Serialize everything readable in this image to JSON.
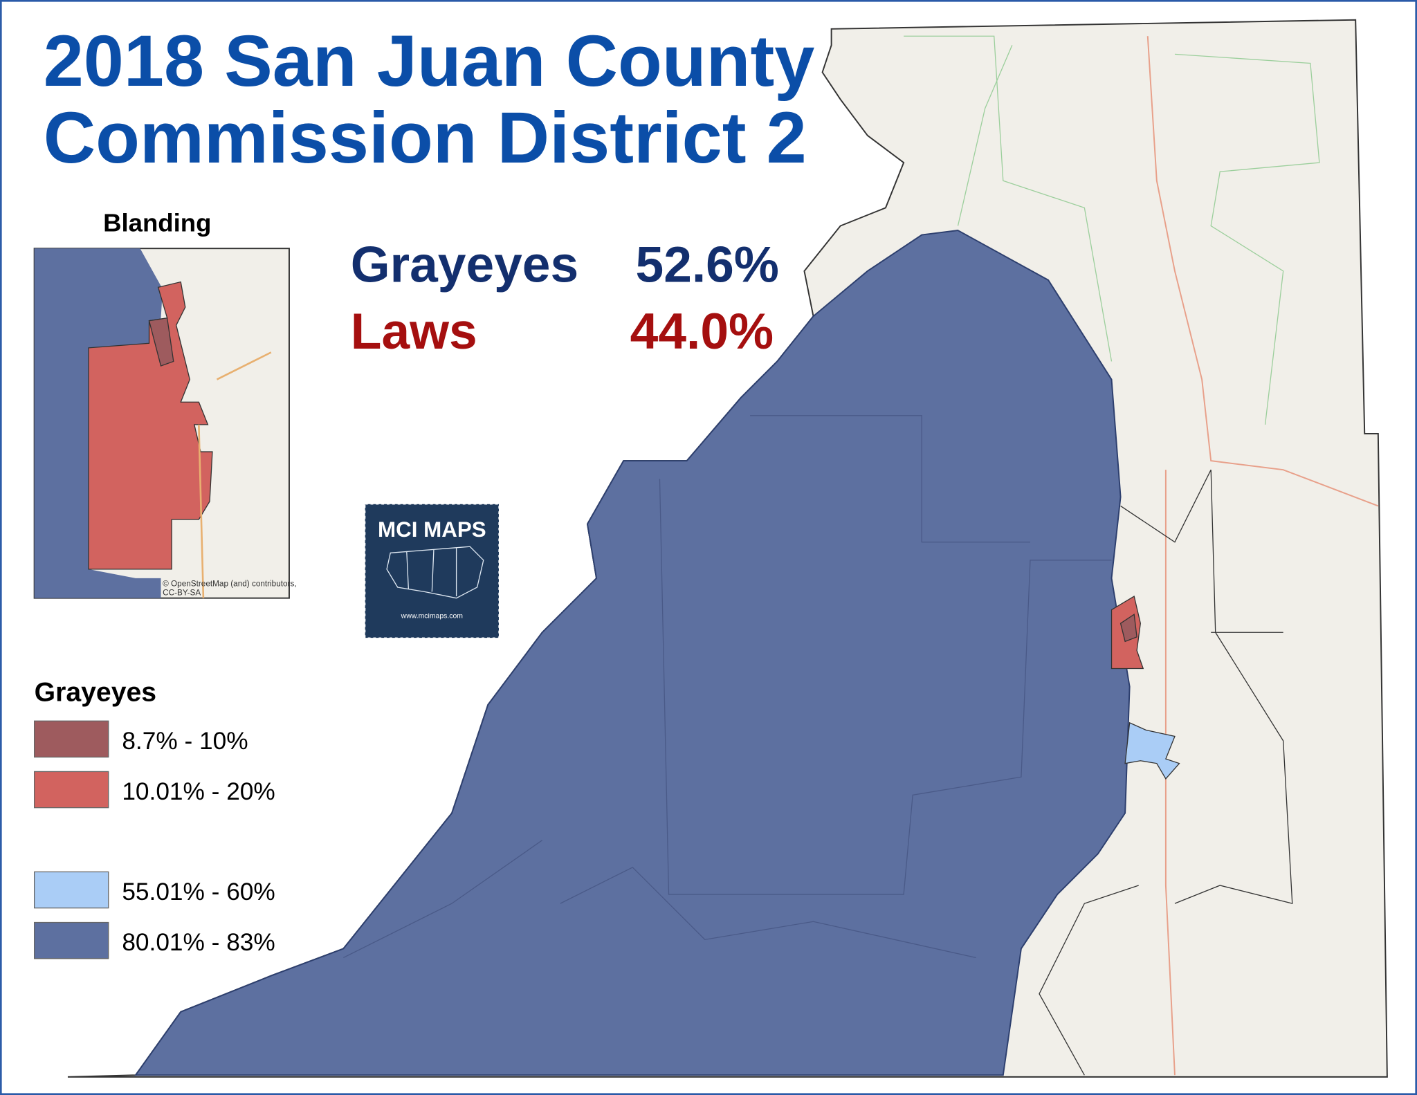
{
  "header": {
    "title_line1": "2018 San Juan County",
    "title_line2": "Commission District 2"
  },
  "results": [
    {
      "candidate": "Grayeyes",
      "share": "52.6%",
      "color": "#132f6e"
    },
    {
      "candidate": "Laws",
      "share": "44.0%",
      "color": "#a50f0f"
    }
  ],
  "inset": {
    "title": "Blanding",
    "attribution_line1": "© OpenStreetMap (and) contributors,",
    "attribution_line2": "CC-BY-SA"
  },
  "logo": {
    "name": "MCI MAPS",
    "url": "www.mcimaps.com"
  },
  "legend": {
    "title": "Grayeyes",
    "items": [
      {
        "label": "8.7% - 10%",
        "color": "#9e5b5e"
      },
      {
        "label": "10.01% - 20%",
        "color": "#d2635f"
      },
      {
        "label": "55.01% - 60%",
        "color": "#aacdf6"
      },
      {
        "label": "80.01% - 83%",
        "color": "#5d70a0"
      }
    ]
  }
}
